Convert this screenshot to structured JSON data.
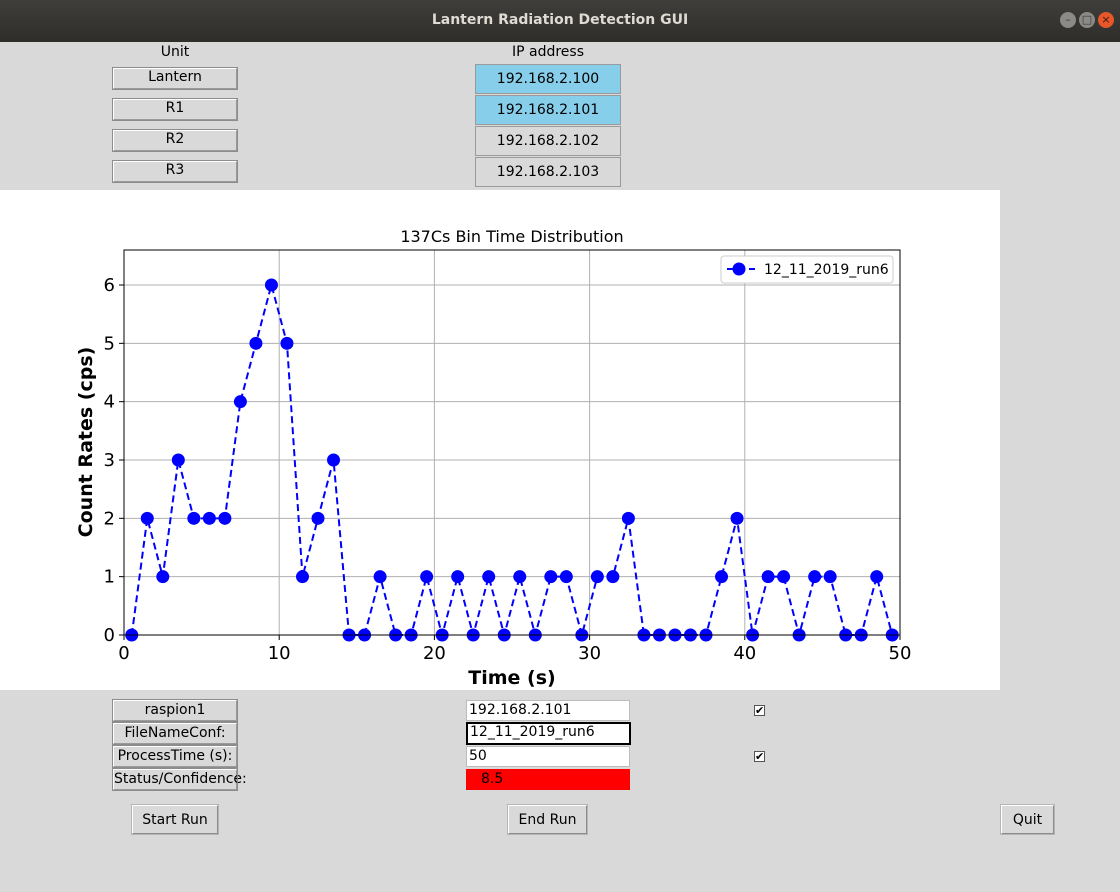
{
  "window": {
    "title": "Lantern Radiation Detection GUI"
  },
  "headers": {
    "unit": "Unit",
    "ip": "IP address"
  },
  "units": [
    {
      "name": "Lantern",
      "ip": "192.168.2.100",
      "active": true
    },
    {
      "name": "R1",
      "ip": "192.168.2.101",
      "active": true
    },
    {
      "name": "R2",
      "ip": "192.168.2.102",
      "active": false
    },
    {
      "name": "R3",
      "ip": "192.168.2.103",
      "active": false
    }
  ],
  "chart_data": {
    "type": "line",
    "title": "137Cs Bin Time Distribution",
    "xlabel": "Time (s)",
    "ylabel": "Count Rates (cps)",
    "xlim": [
      0,
      50
    ],
    "ylim": [
      0,
      6.6
    ],
    "xticks": [
      0,
      10,
      20,
      30,
      40,
      50
    ],
    "yticks": [
      0,
      1,
      2,
      3,
      4,
      5,
      6
    ],
    "grid": true,
    "legend_position": "top-right",
    "series": [
      {
        "name": "12_11_2019_run6",
        "color": "#0000ff",
        "style": "dashed-circle-markers",
        "x": [
          0.5,
          1.5,
          2.5,
          3.5,
          4.5,
          5.5,
          6.5,
          7.5,
          8.5,
          9.5,
          10.5,
          11.5,
          12.5,
          13.5,
          14.5,
          15.5,
          16.5,
          17.5,
          18.5,
          19.5,
          20.5,
          21.5,
          22.5,
          23.5,
          24.5,
          25.5,
          26.5,
          27.5,
          28.5,
          29.5,
          30.5,
          31.5,
          32.5,
          33.5,
          34.5,
          35.5,
          36.5,
          37.5,
          38.5,
          39.5,
          40.5,
          41.5,
          42.5,
          43.5,
          44.5,
          45.5,
          46.5,
          47.5,
          48.5,
          49.5
        ],
        "y": [
          0,
          2,
          1,
          3,
          2,
          2,
          2,
          4,
          5,
          6,
          5,
          1,
          2,
          3,
          0,
          0,
          1,
          0,
          0,
          1,
          0,
          1,
          0,
          1,
          0,
          1,
          0,
          1,
          1,
          0,
          1,
          1,
          2,
          0,
          0,
          0,
          0,
          0,
          1,
          2,
          0,
          1,
          1,
          0,
          1,
          1,
          0,
          0,
          1,
          0
        ]
      }
    ]
  },
  "form": {
    "device_label": "raspion1",
    "device_value": "192.168.2.101",
    "file_label": "FileNameConf:",
    "file_value": "12_11_2019_run6",
    "process_label": "ProcessTime (s):",
    "process_value": "50",
    "status_label": "Status/Confidence:",
    "status_value": "8.5",
    "status_color": "#ff0000",
    "check_mark": "✔"
  },
  "buttons": {
    "start": "Start Run",
    "end": "End Run",
    "quit": "Quit"
  }
}
